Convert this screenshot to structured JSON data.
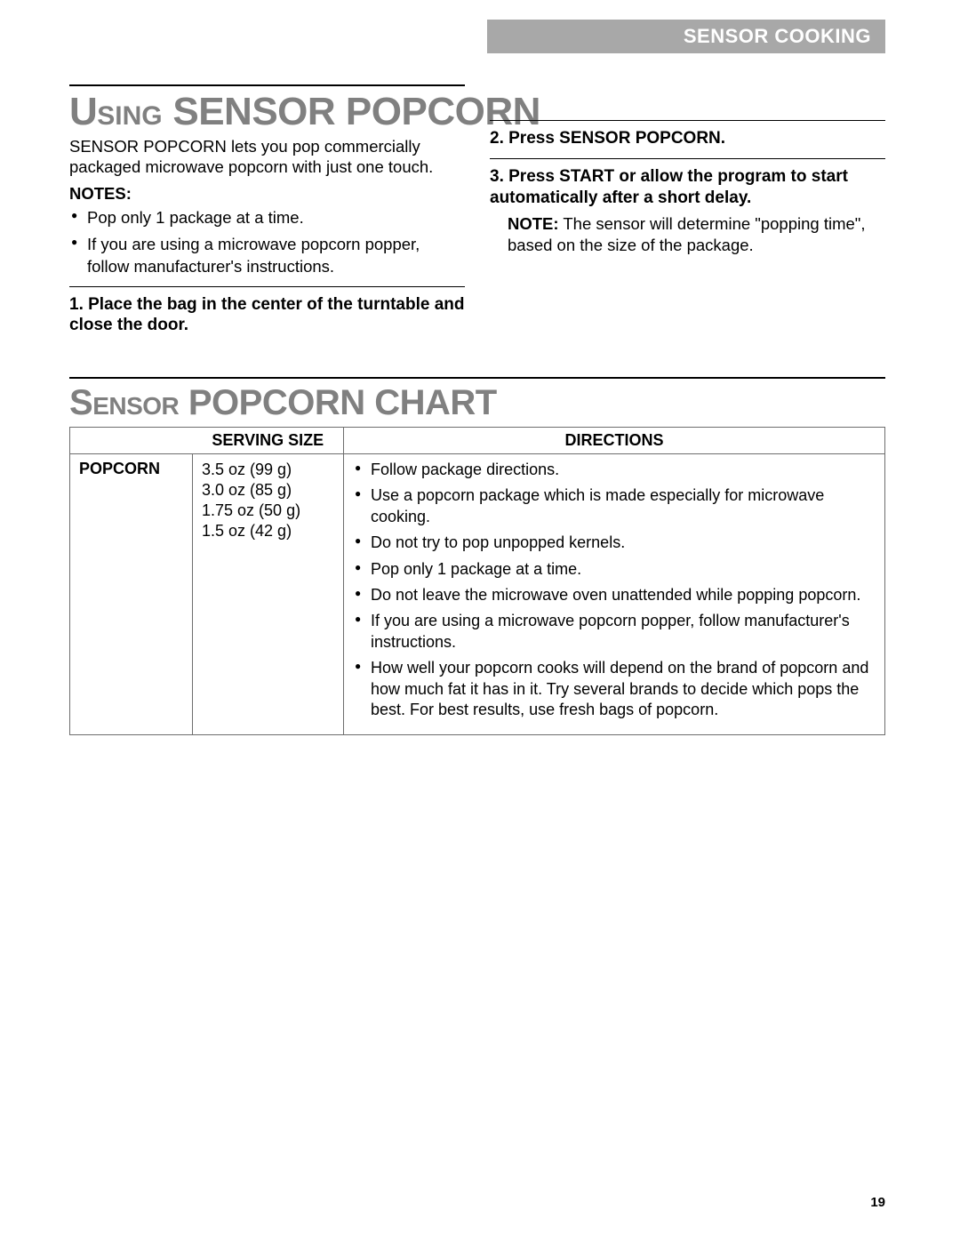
{
  "header": {
    "section_label": "SENSOR COOKING"
  },
  "colors": {
    "header_bar_bg": "#a8a8a8",
    "header_bar_text": "#ffffff",
    "title_color": "#808080",
    "text_color": "#000000",
    "table_border": "#6d6d6d",
    "page_bg": "#ffffff"
  },
  "typography": {
    "body_font": "Arial, Helvetica, sans-serif",
    "title_font": "Arial Narrow, Arial, sans-serif",
    "body_size_pt": 14,
    "title_big_size_pt": 33,
    "title_small_size_pt": 22
  },
  "section1": {
    "title_small1": "U",
    "title_small2": "SING",
    "title_big": " SENSOR POPCORN",
    "intro": "SENSOR POPCORN lets you pop commercially packaged microwave popcorn with just one touch.",
    "notes_label": "NOTES:",
    "notes": [
      "Pop only 1 package at a time.",
      "If you are using a microwave popcorn popper, follow manufacturer's instructions."
    ],
    "step1": "1. Place the bag in the center of the turntable and close the door.",
    "step2": "2. Press SENSOR POPCORN.",
    "step3": "3. Press START or allow the program to start automatically after a short delay.",
    "step3_note_bold": "NOTE:",
    "step3_note_rest": " The sensor will determine \"popping time\", based on the size of the package."
  },
  "chart": {
    "title_big1": "S",
    "title_small": "ENSOR",
    "title_big2": " POPCORN CHART",
    "columns": {
      "blank": "",
      "serving": "SERVING SIZE",
      "directions": "DIRECTIONS"
    },
    "row_label": "POPCORN",
    "serving_sizes": [
      "3.5 oz (99 g)",
      "3.0 oz (85 g)",
      "1.75 oz (50 g)",
      "1.5 oz (42 g)"
    ],
    "directions": [
      "Follow package directions.",
      "Use a popcorn package which is made especially for microwave cooking.",
      "Do not try to pop unpopped kernels.",
      "Pop only 1 package at a time.",
      "Do not leave the microwave oven unattended while popping popcorn.",
      "If you are using a microwave popcorn popper, follow manufacturer's instructions.",
      "How well your popcorn cooks will depend on the brand of popcorn and how much fat it has in it. Try several brands to decide which pops the best. For best results, use fresh bags of popcorn."
    ]
  },
  "page_number": "19"
}
